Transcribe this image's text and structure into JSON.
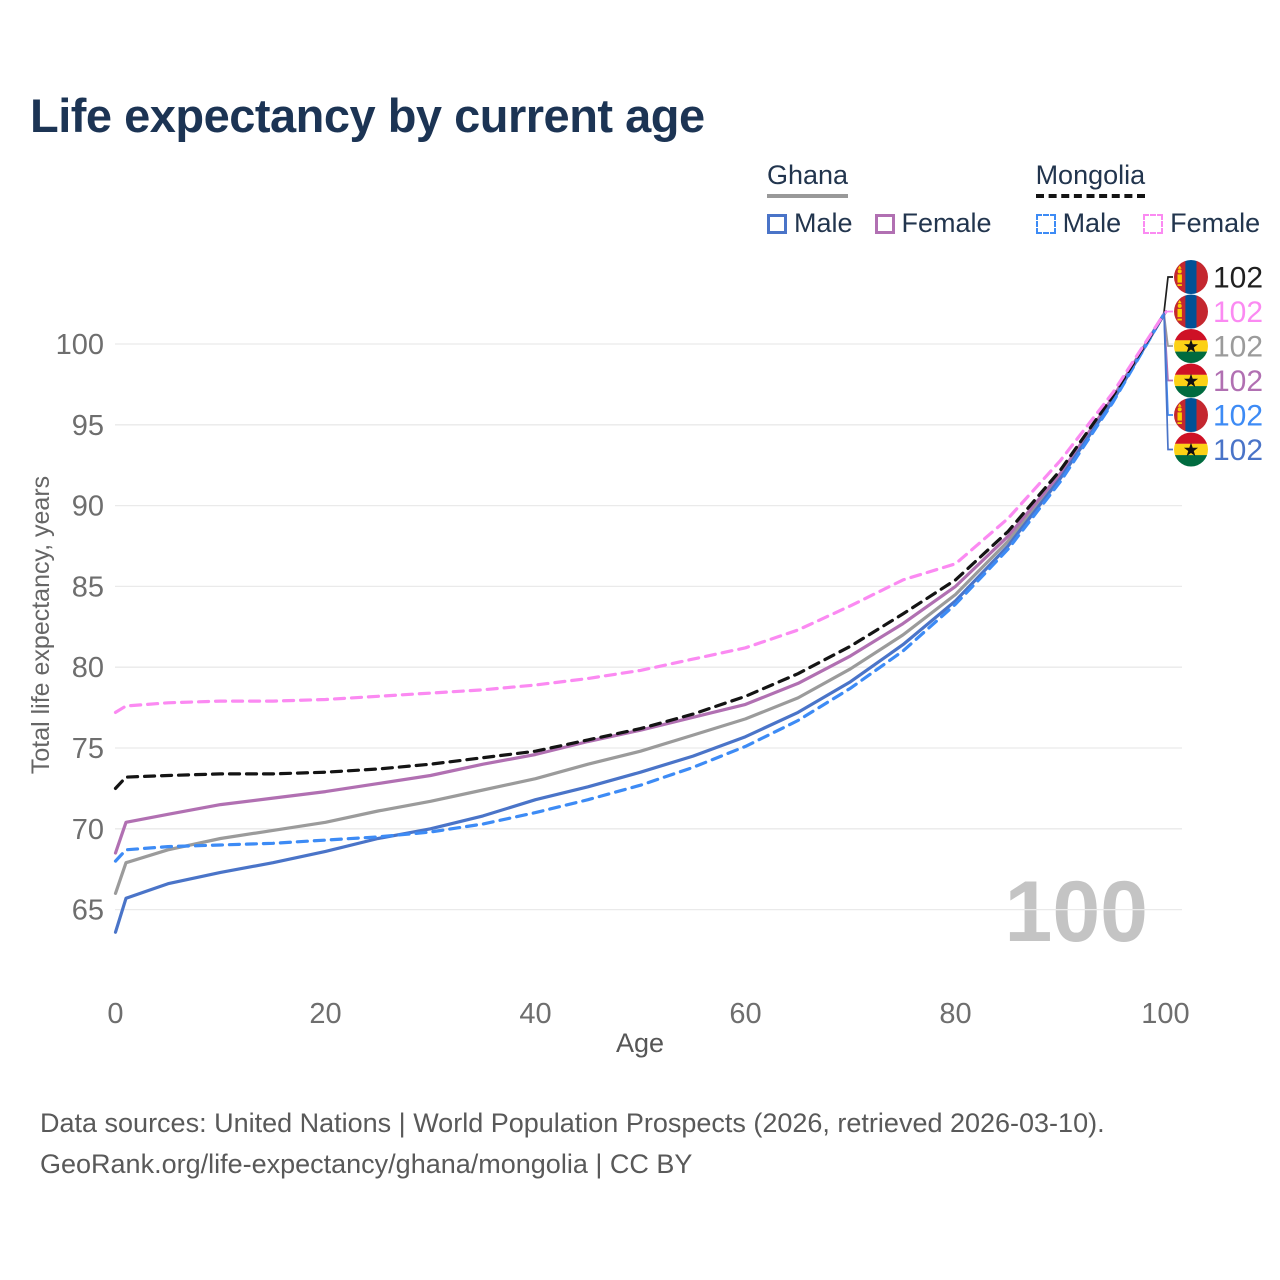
{
  "title": "Life expectancy by current age",
  "legend": {
    "groups": [
      {
        "label": "Ghana",
        "line_style": "solid",
        "underline_color": "#999999",
        "items": [
          {
            "label": "Male",
            "color": "#4a74c8",
            "dashed": false
          },
          {
            "label": "Female",
            "color": "#b170b2",
            "dashed": false
          }
        ]
      },
      {
        "label": "Mongolia",
        "line_style": "dashed",
        "underline_color": "#141414",
        "items": [
          {
            "label": "Male",
            "color": "#3d8bf5",
            "dashed": true
          },
          {
            "label": "Female",
            "color": "#fb8af2",
            "dashed": true
          }
        ]
      }
    ]
  },
  "watermark": "100",
  "footer": {
    "line1": "Data sources: United Nations | World Population Prospects (2026, retrieved 2026-03-10).",
    "line2": "GeoRank.org/life-expectancy/ghana/mongolia | CC BY"
  },
  "flag_colors": {
    "ghana": {
      "red": "#ce1126",
      "gold": "#fcd116",
      "green": "#006b3f",
      "star": "#111111"
    },
    "mongolia": {
      "red": "#c4272f",
      "blue": "#015197",
      "soyombo": "#f9cf02"
    }
  },
  "chart_data": {
    "type": "line",
    "title": "Life expectancy by current age",
    "xlabel": "Age",
    "ylabel": "Total life expectancy, years",
    "xlim": [
      0,
      100
    ],
    "ylim": [
      63,
      103
    ],
    "xticks": [
      0,
      20,
      40,
      60,
      80,
      100
    ],
    "yticks": [
      65,
      70,
      75,
      80,
      85,
      90,
      95,
      100
    ],
    "grid": "horizontal",
    "legend_position": "top-right",
    "x": [
      0,
      1,
      5,
      10,
      15,
      20,
      25,
      30,
      35,
      40,
      45,
      50,
      55,
      60,
      65,
      70,
      75,
      80,
      85,
      90,
      95,
      100
    ],
    "series": [
      {
        "name": "Ghana (both sexes)",
        "country": "Ghana",
        "sex": "Both",
        "color": "#9b9b9b",
        "dashed": false,
        "values": [
          66.0,
          67.9,
          68.7,
          69.4,
          69.9,
          70.4,
          71.1,
          71.7,
          72.4,
          73.1,
          74.0,
          74.8,
          75.8,
          76.8,
          78.1,
          79.9,
          82.0,
          84.5,
          87.8,
          91.8,
          96.6,
          102
        ]
      },
      {
        "name": "Ghana Female",
        "country": "Ghana",
        "sex": "Female",
        "color": "#b170b2",
        "dashed": false,
        "values": [
          68.5,
          70.4,
          70.9,
          71.5,
          71.9,
          72.3,
          72.8,
          73.3,
          74.0,
          74.6,
          75.4,
          76.1,
          76.9,
          77.7,
          79.0,
          80.7,
          82.7,
          85.0,
          88.1,
          92.0,
          96.7,
          102
        ]
      },
      {
        "name": "Ghana Male",
        "country": "Ghana",
        "sex": "Male",
        "color": "#4a74c8",
        "dashed": false,
        "values": [
          63.6,
          65.7,
          66.6,
          67.3,
          67.9,
          68.6,
          69.4,
          70.0,
          70.8,
          71.8,
          72.6,
          73.5,
          74.5,
          75.7,
          77.2,
          79.1,
          81.4,
          84.1,
          87.5,
          91.7,
          96.5,
          102
        ]
      },
      {
        "name": "Mongolia Male",
        "country": "Mongolia",
        "sex": "Male",
        "color": "#3d8bf5",
        "dashed": true,
        "values": [
          68.0,
          68.7,
          68.9,
          69.0,
          69.1,
          69.3,
          69.5,
          69.8,
          70.3,
          71.0,
          71.8,
          72.7,
          73.8,
          75.1,
          76.7,
          78.7,
          81.0,
          83.9,
          87.3,
          91.5,
          96.4,
          102
        ]
      },
      {
        "name": "Mongolia (both sexes)",
        "country": "Mongolia",
        "sex": "Both",
        "color": "#141414",
        "dashed": true,
        "values": [
          72.5,
          73.2,
          73.3,
          73.4,
          73.4,
          73.5,
          73.7,
          74.0,
          74.4,
          74.8,
          75.5,
          76.2,
          77.1,
          78.2,
          79.6,
          81.3,
          83.3,
          85.4,
          88.4,
          92.2,
          96.8,
          102
        ]
      },
      {
        "name": "Mongolia Female",
        "country": "Mongolia",
        "sex": "Female",
        "color": "#fb8af2",
        "dashed": true,
        "values": [
          77.2,
          77.6,
          77.8,
          77.9,
          77.9,
          78.0,
          78.2,
          78.4,
          78.6,
          78.9,
          79.3,
          79.8,
          80.5,
          81.2,
          82.3,
          83.8,
          85.4,
          86.4,
          89.2,
          92.8,
          97.0,
          102
        ]
      }
    ],
    "end_labels": [
      {
        "flag": "mongolia",
        "series": "Mongolia (both sexes)",
        "text": "102",
        "color": "#1f1f1f"
      },
      {
        "flag": "mongolia",
        "series": "Mongolia Female",
        "text": "102",
        "color": "#fb8af2"
      },
      {
        "flag": "ghana",
        "series": "Ghana (both sexes)",
        "text": "102",
        "color": "#9b9b9b"
      },
      {
        "flag": "ghana",
        "series": "Ghana Female",
        "text": "102",
        "color": "#b170b2"
      },
      {
        "flag": "mongolia",
        "series": "Mongolia Male",
        "text": "102",
        "color": "#3d8bf5"
      },
      {
        "flag": "ghana",
        "series": "Ghana Male",
        "text": "102",
        "color": "#4a74c8"
      }
    ]
  }
}
